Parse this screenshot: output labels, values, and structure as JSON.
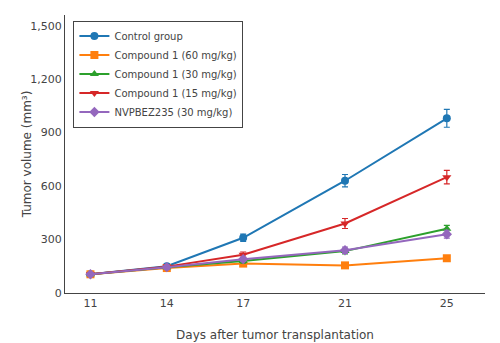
{
  "chart_data": {
    "type": "line",
    "x": [
      11,
      14,
      17,
      21,
      25
    ],
    "series": [
      {
        "name": "Control group",
        "values": [
          105,
          150,
          310,
          630,
          980
        ],
        "error": [
          8,
          12,
          20,
          35,
          50
        ],
        "marker": "circle"
      },
      {
        "name": "Compound 1 (60 mg/kg)",
        "values": [
          105,
          140,
          165,
          155,
          195
        ],
        "error": [
          8,
          10,
          10,
          8,
          12
        ],
        "marker": "square"
      },
      {
        "name": "Compound 1 (30 mg/kg)",
        "values": [
          105,
          145,
          180,
          235,
          360
        ],
        "error": [
          8,
          10,
          12,
          15,
          20
        ],
        "marker": "triangle-up"
      },
      {
        "name": "Compound 1 (15 mg/kg)",
        "values": [
          105,
          148,
          215,
          390,
          650
        ],
        "error": [
          8,
          12,
          15,
          28,
          38
        ],
        "marker": "triangle-down"
      },
      {
        "name": "NVPBEZ235 (30 mg/kg)",
        "values": [
          105,
          145,
          190,
          240,
          330
        ],
        "error": [
          8,
          10,
          12,
          18,
          22
        ],
        "marker": "diamond"
      }
    ],
    "xlabel": "Days after tumor transplantation",
    "ylabel": "Tumor volume (mm³)",
    "xlim": [
      10.0,
      26.5
    ],
    "xticks": [
      11,
      14,
      17,
      21,
      25
    ],
    "ylim": [
      0,
      1560
    ],
    "yticks": [
      0,
      300,
      600,
      900,
      {
        "value": 1200,
        "label": "1,200"
      },
      {
        "value": 1500,
        "label": "1,500"
      }
    ],
    "grid": false,
    "legend": "upper left"
  }
}
